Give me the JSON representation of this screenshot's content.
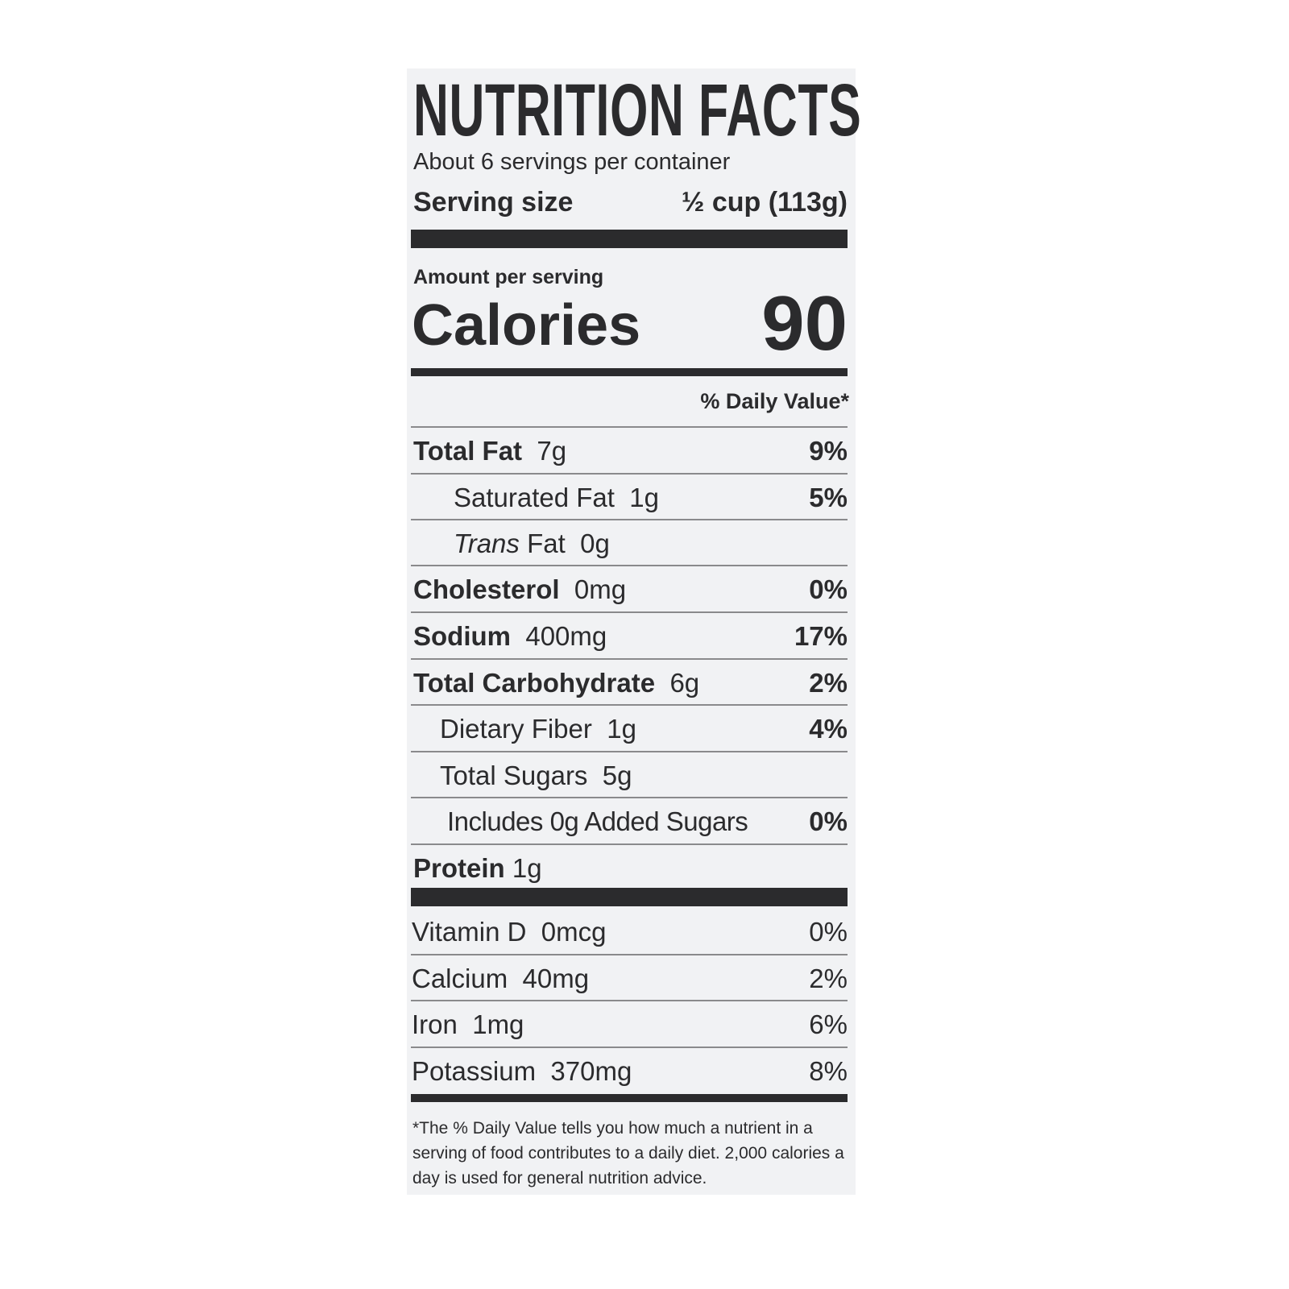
{
  "title": "NUTRITION FACTS",
  "servings_per_container": "About 6 servings per container",
  "serving_size": {
    "label": "Serving size",
    "value": "½ cup (113g)"
  },
  "amount_per_serving": "Amount per serving",
  "calories": {
    "label": "Calories",
    "value": "90"
  },
  "daily_value_header": "% Daily Value*",
  "nutrients": [
    {
      "name": "Total Fat",
      "amount": "7g",
      "dv": "9%"
    },
    {
      "name": "Saturated Fat",
      "amount": "1g",
      "dv": "5%"
    },
    {
      "name_italic": "Trans",
      "name": "Fat",
      "amount": "0g",
      "dv": ""
    },
    {
      "name": "Cholesterol",
      "amount": "0mg",
      "dv": "0%"
    },
    {
      "name": "Sodium",
      "amount": "400mg",
      "dv": "17%"
    },
    {
      "name": "Total Carbohydrate",
      "amount": "6g",
      "dv": "2%"
    },
    {
      "name": "Dietary Fiber",
      "amount": "1g",
      "dv": "4%"
    },
    {
      "name": "Total Sugars",
      "amount": "5g",
      "dv": ""
    },
    {
      "name": "Includes 0g Added Sugars",
      "amount": "",
      "dv": "0%"
    },
    {
      "name": "Protein",
      "amount": "1g",
      "dv": ""
    }
  ],
  "vitamins": [
    {
      "name": "Vitamin D",
      "amount": "0mcg",
      "dv": "0%"
    },
    {
      "name": "Calcium",
      "amount": "40mg",
      "dv": "2%"
    },
    {
      "name": "Iron",
      "amount": "1mg",
      "dv": "6%"
    },
    {
      "name": "Potassium",
      "amount": "370mg",
      "dv": "8%"
    }
  ],
  "footnote": "*The % Daily Value tells you how much a nutrient in a serving of food contributes to a daily diet. 2,000 calories a day is used for general nutrition advice."
}
